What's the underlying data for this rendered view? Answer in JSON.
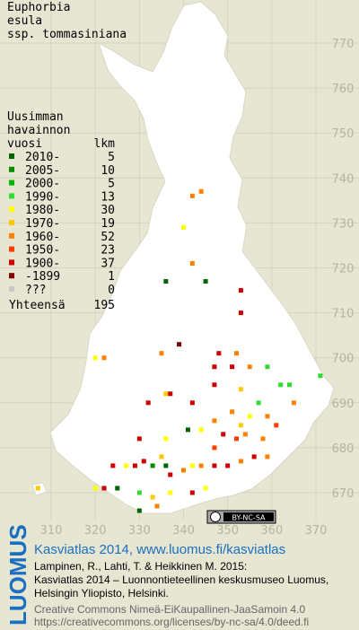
{
  "title": [
    "Euphorbia",
    "esula",
    "ssp. tommasiniana"
  ],
  "legend": {
    "title": [
      "Uusimman",
      "havainnon",
      "vuosi"
    ],
    "count_header": "lkm",
    "rows": [
      {
        "label": "2010-",
        "count": 5,
        "color": "#006400"
      },
      {
        "label": "2005-",
        "count": 10,
        "color": "#008c00"
      },
      {
        "label": "2000-",
        "count": 5,
        "color": "#00b400"
      },
      {
        "label": "1990-",
        "count": 13,
        "color": "#30dc30"
      },
      {
        "label": "1980-",
        "count": 30,
        "color": "#ffff00"
      },
      {
        "label": "1970-",
        "count": 19,
        "color": "#ffc800"
      },
      {
        "label": "1960-",
        "count": 52,
        "color": "#ff8000"
      },
      {
        "label": "1950-",
        "count": 23,
        "color": "#ff3c00"
      },
      {
        "label": "1900-",
        "count": 37,
        "color": "#cc0000"
      },
      {
        "label": "-1899",
        "count": 1,
        "color": "#800000"
      },
      {
        "label": "???",
        "count": 0,
        "color": "#c8c8c8"
      }
    ],
    "total_label": "Yhteensä",
    "total": 195
  },
  "map": {
    "xticks": [
      310,
      320,
      330,
      340,
      350,
      360,
      370
    ],
    "yticks": [
      670,
      680,
      690,
      700,
      710,
      720,
      730,
      740,
      750,
      760,
      770
    ],
    "points": [
      {
        "e": 342,
        "n": 736,
        "period": 6
      },
      {
        "e": 344,
        "n": 737,
        "period": 6
      },
      {
        "e": 340,
        "n": 729,
        "period": 4
      },
      {
        "e": 342,
        "n": 721,
        "period": 6
      },
      {
        "e": 336,
        "n": 717,
        "period": 0
      },
      {
        "e": 345,
        "n": 717,
        "period": 0
      },
      {
        "e": 353,
        "n": 715,
        "period": 8
      },
      {
        "e": 353,
        "n": 710,
        "period": 8
      },
      {
        "e": 339,
        "n": 703,
        "period": 9
      },
      {
        "e": 348,
        "n": 701,
        "period": 8
      },
      {
        "e": 352,
        "n": 701,
        "period": 6
      },
      {
        "e": 320,
        "n": 700,
        "period": 4
      },
      {
        "e": 322,
        "n": 700,
        "period": 6
      },
      {
        "e": 335,
        "n": 701,
        "period": 6
      },
      {
        "e": 347,
        "n": 698,
        "period": 8
      },
      {
        "e": 351,
        "n": 698,
        "period": 8
      },
      {
        "e": 359,
        "n": 698,
        "period": 3
      },
      {
        "e": 355,
        "n": 698,
        "period": 6
      },
      {
        "e": 362,
        "n": 694,
        "period": 3
      },
      {
        "e": 364,
        "n": 694,
        "period": 3
      },
      {
        "e": 371,
        "n": 696,
        "period": 3
      },
      {
        "e": 347,
        "n": 694,
        "period": 8
      },
      {
        "e": 353,
        "n": 693,
        "period": 5
      },
      {
        "e": 336,
        "n": 692,
        "period": 5
      },
      {
        "e": 337,
        "n": 692,
        "period": 8
      },
      {
        "e": 332,
        "n": 690,
        "period": 8
      },
      {
        "e": 342,
        "n": 690,
        "period": 8
      },
      {
        "e": 351,
        "n": 688,
        "period": 6
      },
      {
        "e": 357,
        "n": 690,
        "period": 3
      },
      {
        "e": 365,
        "n": 690,
        "period": 6
      },
      {
        "e": 355,
        "n": 687,
        "period": 4
      },
      {
        "e": 359,
        "n": 687,
        "period": 6
      },
      {
        "e": 353,
        "n": 685,
        "period": 5
      },
      {
        "e": 347,
        "n": 686,
        "period": 6
      },
      {
        "e": 349,
        "n": 683,
        "period": 8
      },
      {
        "e": 352,
        "n": 682,
        "period": 7
      },
      {
        "e": 354,
        "n": 683,
        "period": 6
      },
      {
        "e": 358,
        "n": 682,
        "period": 6
      },
      {
        "e": 361,
        "n": 685,
        "period": 7
      },
      {
        "e": 344,
        "n": 684,
        "period": 4
      },
      {
        "e": 341,
        "n": 684,
        "period": 0
      },
      {
        "e": 336,
        "n": 682,
        "period": 4
      },
      {
        "e": 330,
        "n": 682,
        "period": 8
      },
      {
        "e": 335,
        "n": 678,
        "period": 5
      },
      {
        "e": 331,
        "n": 677,
        "period": 8
      },
      {
        "e": 329,
        "n": 676,
        "period": 8
      },
      {
        "e": 327,
        "n": 676,
        "period": 4
      },
      {
        "e": 324,
        "n": 676,
        "period": 8
      },
      {
        "e": 333,
        "n": 676,
        "period": 1
      },
      {
        "e": 336,
        "n": 676,
        "period": 0
      },
      {
        "e": 337,
        "n": 674,
        "period": 8
      },
      {
        "e": 340,
        "n": 675,
        "period": 6
      },
      {
        "e": 342,
        "n": 676,
        "period": 4
      },
      {
        "e": 344,
        "n": 676,
        "period": 6
      },
      {
        "e": 347,
        "n": 676,
        "period": 8
      },
      {
        "e": 350,
        "n": 676,
        "period": 8
      },
      {
        "e": 353,
        "n": 677,
        "period": 6
      },
      {
        "e": 356,
        "n": 678,
        "period": 8
      },
      {
        "e": 359,
        "n": 678,
        "period": 6
      },
      {
        "e": 347,
        "n": 680,
        "period": 7
      },
      {
        "e": 345,
        "n": 671,
        "period": 4
      },
      {
        "e": 342,
        "n": 670,
        "period": 8
      },
      {
        "e": 337,
        "n": 670,
        "period": 4
      },
      {
        "e": 333,
        "n": 669,
        "period": 5
      },
      {
        "e": 330,
        "n": 670,
        "period": 3
      },
      {
        "e": 325,
        "n": 671,
        "period": 0
      },
      {
        "e": 322,
        "n": 671,
        "period": 8
      },
      {
        "e": 320,
        "n": 671,
        "period": 4
      },
      {
        "e": 307,
        "n": 671,
        "period": 5
      },
      {
        "e": 330,
        "n": 666,
        "period": 0
      },
      {
        "e": 334,
        "n": 667,
        "period": 6
      }
    ]
  },
  "badge": "BY-NC-SA",
  "footer": {
    "logo": "LUOMUS",
    "heading": "Kasviatlas 2014, www.luomus.fi/kasviatlas",
    "citation": [
      "Lampinen, R., Lahti, T. & Heikkinen M. 2015:",
      "Kasviatlas 2014 – Luonnontieteellinen keskusmuseo Luomus,",
      "Helsingin Yliopisto, Helsinki."
    ],
    "license": [
      "Creative Commons Nimeä-EiKaupallinen-JaaSamoin 4.0",
      "https://creativecommons.org/licenses/by-nc-sa/4.0/deed.fi"
    ]
  }
}
